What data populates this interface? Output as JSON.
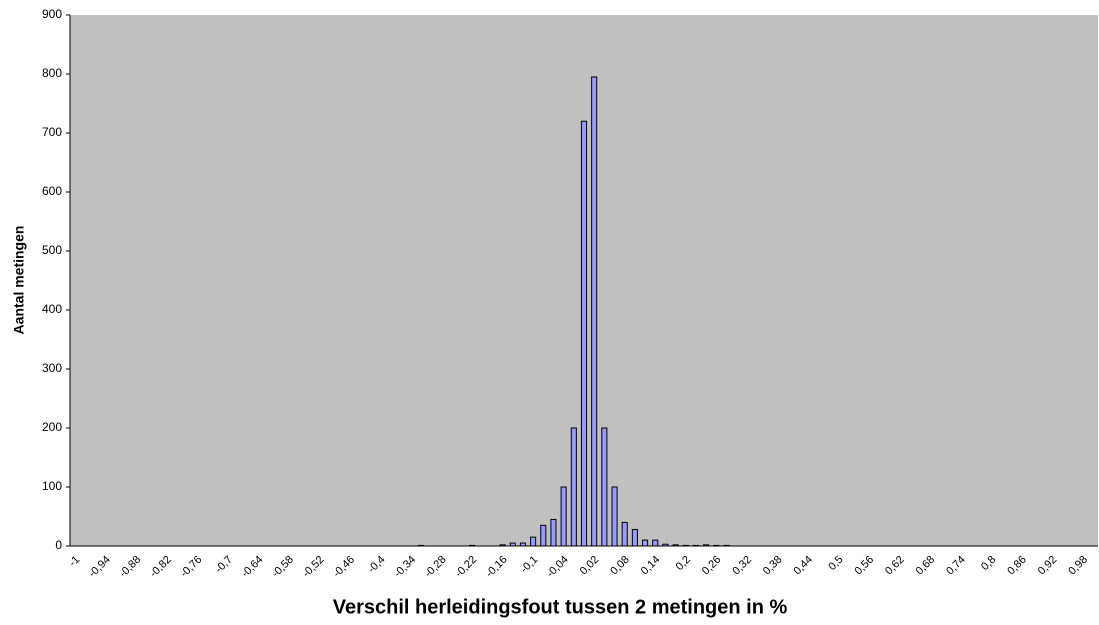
{
  "chart_data": {
    "type": "bar",
    "x_label": "Verschil herleidingsfout tussen 2 metingen in %",
    "y_label": "Aantal metingen",
    "categories": [
      "-1",
      null,
      null,
      "-0,94",
      null,
      null,
      "-0,88",
      null,
      null,
      "-0,82",
      null,
      null,
      "-0,76",
      null,
      null,
      "-0,7",
      null,
      null,
      "-0,64",
      null,
      null,
      "-0,58",
      null,
      null,
      "-0,52",
      null,
      null,
      "-0,46",
      null,
      null,
      "-0,4",
      null,
      null,
      "-0,34",
      null,
      null,
      "-0,28",
      null,
      null,
      "-0,22",
      null,
      null,
      "-0,16",
      null,
      null,
      "-0,1",
      null,
      null,
      "-0,04",
      null,
      null,
      "0,02",
      null,
      null,
      "0,08",
      null,
      null,
      "0,14",
      null,
      null,
      "0,2",
      null,
      null,
      "0,26",
      null,
      null,
      "0,32",
      null,
      null,
      "0,38",
      null,
      null,
      "0,44",
      null,
      null,
      "0,5",
      null,
      null,
      "0,56",
      null,
      null,
      "0,62",
      null,
      null,
      "0,68",
      null,
      null,
      "0,74",
      null,
      null,
      "0,8",
      null,
      null,
      "0,86",
      null,
      null,
      "0,92",
      null,
      null,
      "0,98",
      null
    ],
    "values": [
      0,
      0,
      0,
      0,
      0,
      0,
      0,
      0,
      0,
      0,
      0,
      0,
      0,
      0,
      0,
      0,
      0,
      0,
      0,
      0,
      0,
      0,
      0,
      0,
      0,
      0,
      0,
      0,
      0,
      0,
      0,
      0,
      0,
      0,
      1,
      0,
      0,
      0,
      0,
      1,
      0,
      0,
      2,
      5,
      5,
      15,
      35,
      45,
      100,
      200,
      720,
      795,
      200,
      100,
      40,
      28,
      10,
      10,
      3,
      2,
      1,
      1,
      2,
      1,
      1,
      0,
      0,
      0,
      0,
      0,
      0,
      0,
      0,
      0,
      0,
      0,
      0,
      0,
      0,
      0,
      0,
      0,
      0,
      0,
      0,
      0,
      0,
      0,
      0,
      0,
      0,
      0,
      0,
      0,
      0,
      0,
      0,
      0,
      0,
      0,
      0
    ],
    "color": "#9999ff",
    "background": "#c0c0c0",
    "ylim": [
      0,
      900
    ],
    "yticks": [
      0,
      100,
      200,
      300,
      400,
      500,
      600,
      700,
      800,
      900
    ],
    "grid": false
  }
}
